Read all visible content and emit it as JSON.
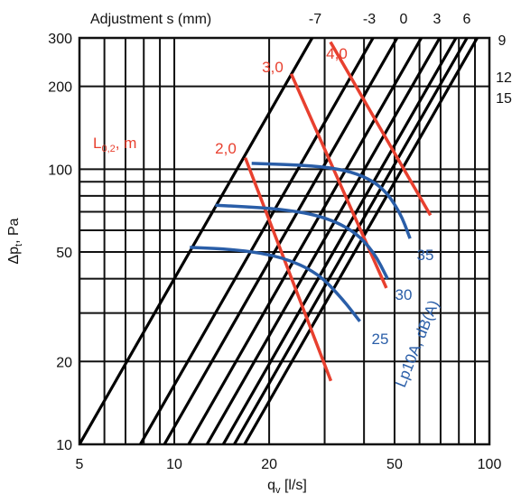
{
  "chart_data": {
    "type": "line",
    "xscale": "log",
    "yscale": "log",
    "xlim": [
      5,
      100
    ],
    "ylim": [
      10,
      300
    ],
    "xlabel": "q_v [l/s]",
    "ylabel": "Δp_t, Pa",
    "xticks": [
      "5",
      "10",
      "20",
      "50",
      "100"
    ],
    "yticks": [
      "10",
      "20",
      "50",
      "100",
      "200",
      "300"
    ],
    "top_label": "Adjustment s (mm)",
    "grid": true,
    "adjustment_lines": [
      {
        "s": "-7",
        "x": [
          5.0,
          34.1
        ]
      },
      {
        "s": "-3",
        "x": [
          7.8,
          52.7
        ]
      },
      {
        "s": "0",
        "x": [
          9.3,
          62.8
        ]
      },
      {
        "s": "3",
        "x": [
          11.1,
          74.8
        ]
      },
      {
        "s": "6",
        "x": [
          12.7,
          85.8
        ]
      },
      {
        "s": "9",
        "x": [
          14.3,
          96.9
        ]
      },
      {
        "s": "12",
        "x": [
          15.5,
          100
        ]
      },
      {
        "s": "15",
        "x": [
          16.7,
          100
        ]
      }
    ],
    "throw_length": {
      "label": "L",
      "sub": "0,2",
      "suffix": ", m",
      "series": [
        {
          "name": "2,0",
          "x": [
            16.8,
            31.4
          ],
          "y": [
            110,
            17
          ]
        },
        {
          "name": "3,0",
          "x": [
            23.5,
            47.1
          ],
          "y": [
            222,
            37
          ]
        },
        {
          "name": "4,0",
          "x": [
            31.3,
            65.0
          ],
          "y": [
            290,
            68
          ]
        }
      ]
    },
    "sound_level": {
      "label": "Lp10A, dB(A)",
      "series": [
        {
          "name": "35",
          "x": [
            17.6,
            28.0,
            37.0,
            45.5,
            52.0,
            56.0
          ],
          "y": [
            105,
            103,
            98,
            87,
            70,
            56
          ]
        },
        {
          "name": "30",
          "x": [
            13.5,
            21.0,
            29.0,
            37.0,
            43.0,
            47.5
          ],
          "y": [
            74,
            72,
            68,
            60,
            50,
            40
          ]
        },
        {
          "name": "25",
          "x": [
            11.2,
            16.0,
            22.0,
            28.5,
            34.0,
            38.8
          ],
          "y": [
            52,
            51,
            48,
            42,
            34,
            28
          ]
        }
      ]
    },
    "colors": {
      "red": "#e8402f",
      "blue": "#2a5ea8",
      "grid": "#111111"
    }
  }
}
